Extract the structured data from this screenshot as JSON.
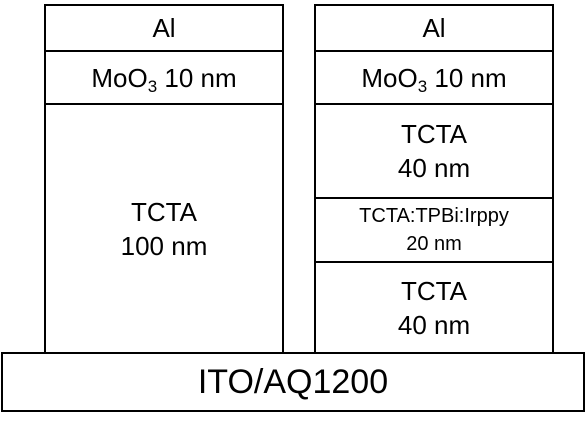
{
  "substrate": {
    "label": "ITO/AQ1200"
  },
  "device_left": {
    "layers": {
      "cathode": "Al",
      "htl": {
        "material": "MoO",
        "subscript": "3",
        "thickness": "10 nm"
      },
      "host": {
        "line1": "TCTA",
        "line2": "100 nm"
      }
    }
  },
  "device_right": {
    "layers": {
      "cathode": "Al",
      "htl": {
        "material": "MoO",
        "subscript": "3",
        "thickness": "10 nm"
      },
      "tcta_top": {
        "line1": "TCTA",
        "line2": "40 nm"
      },
      "emissive": {
        "line1": "TCTA:TPBi:Irppy",
        "line2": "20 nm"
      },
      "tcta_bottom": {
        "line1": "TCTA",
        "line2": "40 nm"
      }
    }
  }
}
